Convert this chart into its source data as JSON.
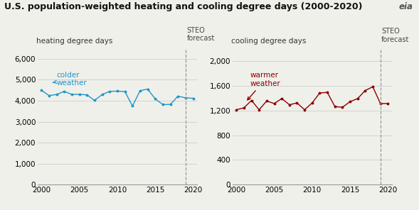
{
  "title": "U.S. population-weighted heating and cooling degree days (2000-2020)",
  "hdd_ylabel": "heating degree days",
  "cdd_ylabel": "cooling degree days",
  "forecast_label": "STEO\nforecast",
  "hdd_annotation": "colder\nweather",
  "cdd_annotation": "warmer\nweather",
  "forecast_year": 2019,
  "hdd_years": [
    2000,
    2001,
    2002,
    2003,
    2004,
    2005,
    2006,
    2007,
    2008,
    2009,
    2010,
    2011,
    2012,
    2013,
    2014,
    2015,
    2016,
    2017,
    2018,
    2019,
    2020
  ],
  "hdd_values": [
    4500,
    4250,
    4300,
    4450,
    4300,
    4310,
    4280,
    4020,
    4300,
    4450,
    4460,
    4440,
    3750,
    4480,
    4560,
    4090,
    3820,
    3830,
    4220,
    4140,
    4120
  ],
  "cdd_years": [
    2000,
    2001,
    2002,
    2003,
    2004,
    2005,
    2006,
    2007,
    2008,
    2009,
    2010,
    2011,
    2012,
    2013,
    2014,
    2015,
    2016,
    2017,
    2018,
    2019,
    2020
  ],
  "cdd_values": [
    1210,
    1240,
    1360,
    1210,
    1350,
    1310,
    1390,
    1290,
    1320,
    1210,
    1320,
    1480,
    1490,
    1260,
    1250,
    1340,
    1390,
    1520,
    1580,
    1310,
    1310
  ],
  "hdd_color": "#2196c8",
  "cdd_color": "#8b0000",
  "hdd_ylim": [
    0,
    6500
  ],
  "hdd_yticks": [
    0,
    1000,
    2000,
    3000,
    4000,
    5000,
    6000
  ],
  "cdd_ylim": [
    0,
    2200
  ],
  "cdd_yticks": [
    0,
    400,
    800,
    1200,
    1600,
    2000
  ],
  "xlim": [
    1999.5,
    2020.5
  ],
  "xticks": [
    2000,
    2005,
    2010,
    2015,
    2020
  ],
  "background_color": "#f0f0eb",
  "grid_color": "#cccccc",
  "title_fontsize": 9.0,
  "label_fontsize": 7.5,
  "tick_fontsize": 7.5,
  "annotation_fontsize": 7.5,
  "forecast_fontsize": 7.0
}
